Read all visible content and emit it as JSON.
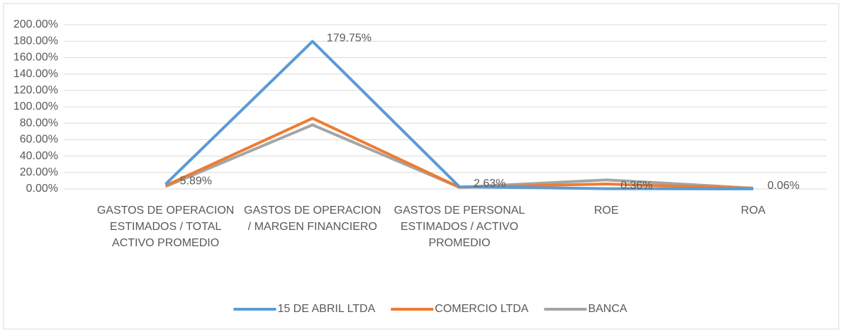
{
  "chart_data": {
    "type": "line",
    "categories": [
      "GASTOS DE OPERACION ESTIMADOS / TOTAL ACTIVO PROMEDIO",
      "GASTOS DE OPERACION / MARGEN FINANCIERO",
      "GASTOS DE PERSONAL ESTIMADOS / ACTIVO PROMEDIO",
      "ROE",
      "ROA"
    ],
    "series": [
      {
        "name": "15 DE ABRIL LTDA",
        "color": "#5b9bd5",
        "values": [
          5.89,
          179.75,
          2.63,
          0.36,
          0.06
        ],
        "value_labels": [
          "5.89%",
          "179.75%",
          "2.63%",
          "0.36%",
          "0.06%"
        ]
      },
      {
        "name": "COMERCIO LTDA",
        "color": "#ed7d31",
        "values": [
          4,
          86,
          2,
          6,
          0.5
        ]
      },
      {
        "name": "BANCA",
        "color": "#a5a5a5",
        "values": [
          3,
          78,
          2,
          11,
          1
        ]
      }
    ],
    "ylim": [
      0,
      200
    ],
    "yticks": [
      {
        "value": 0,
        "label": "0.00%"
      },
      {
        "value": 20,
        "label": "20.00%"
      },
      {
        "value": 40,
        "label": "40.00%"
      },
      {
        "value": 60,
        "label": "60.00%"
      },
      {
        "value": 80,
        "label": "80.00%"
      },
      {
        "value": 100,
        "label": "100.00%"
      },
      {
        "value": 120,
        "label": "120.00%"
      },
      {
        "value": 140,
        "label": "140.00%"
      },
      {
        "value": 160,
        "label": "160.00%"
      },
      {
        "value": 180,
        "label": "180.00%"
      },
      {
        "value": 200,
        "label": "200.00%"
      }
    ],
    "grid": true,
    "legend": "bottom"
  }
}
